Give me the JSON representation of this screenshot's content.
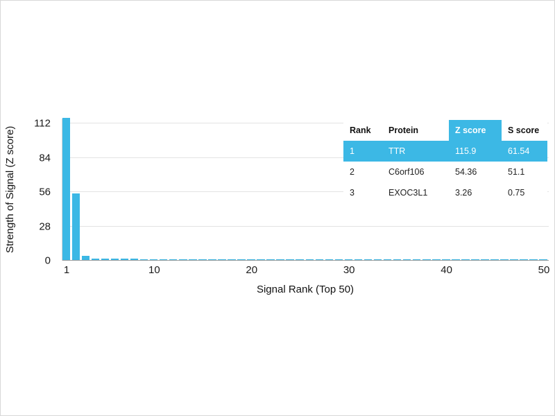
{
  "chart_data": {
    "type": "bar",
    "title": "",
    "xlabel": "Signal Rank (Top 50)",
    "ylabel": "Strength of Signal (Z score)",
    "x_ticks": [
      1,
      10,
      20,
      30,
      40,
      50
    ],
    "y_ticks": [
      0,
      28,
      56,
      84,
      112
    ],
    "ylim": [
      0,
      116
    ],
    "x_range": [
      1,
      50
    ],
    "grid": "horizontal",
    "bar_color": "#3cb8e5",
    "values": [
      115.9,
      54.36,
      3.26,
      1.2,
      1.1,
      1.0,
      0.95,
      0.9,
      0.85,
      0.82,
      0.8,
      0.77,
      0.75,
      0.72,
      0.7,
      0.68,
      0.66,
      0.64,
      0.62,
      0.6,
      0.58,
      0.57,
      0.55,
      0.54,
      0.52,
      0.51,
      0.5,
      0.48,
      0.47,
      0.46,
      0.45,
      0.44,
      0.43,
      0.42,
      0.41,
      0.4,
      0.39,
      0.38,
      0.37,
      0.36,
      0.35,
      0.34,
      0.33,
      0.32,
      0.31,
      0.3,
      0.29,
      0.28,
      0.27,
      0.26
    ]
  },
  "table": {
    "headers": [
      "Rank",
      "Protein",
      "Z score",
      "S score"
    ],
    "highlight_header_index": 2,
    "highlight_row_index": 0,
    "highlight_color": "#3cb8e5",
    "rows": [
      [
        "1",
        "TTR",
        "115.9",
        "61.54"
      ],
      [
        "2",
        "C6orf106",
        "54.36",
        "51.1"
      ],
      [
        "3",
        "EXOC3L1",
        "3.26",
        "0.75"
      ]
    ]
  }
}
